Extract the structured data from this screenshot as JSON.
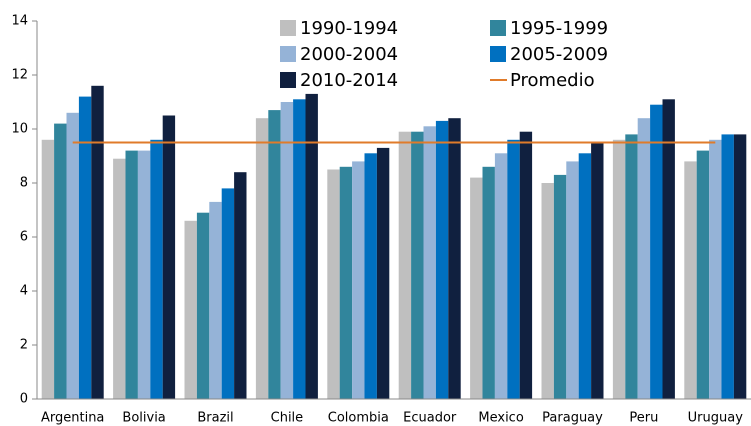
{
  "chart_data": {
    "type": "bar",
    "categories": [
      "Argentina",
      "Bolivia",
      "Brazil",
      "Chile",
      "Colombia",
      "Ecuador",
      "Mexico",
      "Paraguay",
      "Peru",
      "Uruguay"
    ],
    "series": [
      {
        "name": "1990-1994",
        "color": "#bfbfbf",
        "values": [
          9.6,
          8.9,
          6.6,
          10.4,
          8.5,
          9.9,
          8.2,
          8.0,
          9.6,
          8.8
        ]
      },
      {
        "name": "1995-1999",
        "color": "#31859c",
        "values": [
          10.2,
          9.2,
          6.9,
          10.7,
          8.6,
          9.9,
          8.6,
          8.3,
          9.8,
          9.2
        ]
      },
      {
        "name": "2000-2004",
        "color": "#95b3d7",
        "values": [
          10.6,
          9.2,
          7.3,
          11.0,
          8.8,
          10.1,
          9.1,
          8.8,
          10.4,
          9.6
        ]
      },
      {
        "name": "2005-2009",
        "color": "#0070c0",
        "values": [
          11.2,
          9.6,
          7.8,
          11.1,
          9.1,
          10.3,
          9.6,
          9.1,
          10.9,
          9.8
        ]
      },
      {
        "name": "2010-2014",
        "color": "#10203f",
        "values": [
          11.6,
          10.5,
          8.4,
          11.3,
          9.3,
          10.4,
          9.9,
          9.5,
          11.1,
          9.8
        ]
      },
      {
        "name": "Promedio",
        "color": "#e07b2a",
        "type": "line",
        "values": [
          9.5,
          9.5,
          9.5,
          9.5,
          9.5,
          9.5,
          9.5,
          9.5,
          9.5,
          9.5
        ]
      }
    ],
    "ylim": [
      0,
      14
    ],
    "yticks": [
      0,
      2,
      4,
      6,
      8,
      10,
      12,
      14
    ],
    "grid": false
  }
}
